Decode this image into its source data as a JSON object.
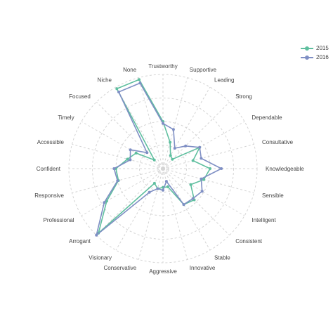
{
  "chart_data": {
    "type": "radar",
    "title": "",
    "categories": [
      "Trustworthy",
      "Supportive",
      "Leading",
      "Strong",
      "Dependable",
      "Consultative",
      "Knowledgeable",
      "Sensible",
      "Intelligent",
      "Consistent",
      "Stable",
      "Innovative",
      "Aggressive",
      "Conservative",
      "Visionary",
      "Arrogant",
      "Professional",
      "Responsive",
      "Confident",
      "Accessible",
      "Timely",
      "Focused",
      "Niche",
      "None"
    ],
    "radial_range": [
      0,
      1
    ],
    "grid": true,
    "legend_position": "top-right",
    "series": [
      {
        "name": "2015",
        "color": "#5fbf9f",
        "values": [
          0.5,
          0.29,
          0.16,
          0.14,
          0.45,
          0.33,
          0.5,
          0.45,
          0.34,
          0.47,
          0.44,
          0.2,
          0.2,
          0.22,
          0.18,
          0.97,
          0.69,
          0.49,
          0.5,
          0.39,
          0.33,
          0.13,
          0.98,
          0.98
        ]
      },
      {
        "name": "2016",
        "color": "#7f8fc4",
        "values": [
          0.48,
          0.43,
          0.25,
          0.34,
          0.45,
          0.42,
          0.62,
          0.42,
          0.48,
          0.45,
          0.44,
          0.14,
          0.23,
          0.22,
          0.29,
          1.0,
          0.72,
          0.5,
          0.52,
          0.36,
          0.4,
          0.24,
          0.94,
          0.94
        ]
      }
    ]
  }
}
